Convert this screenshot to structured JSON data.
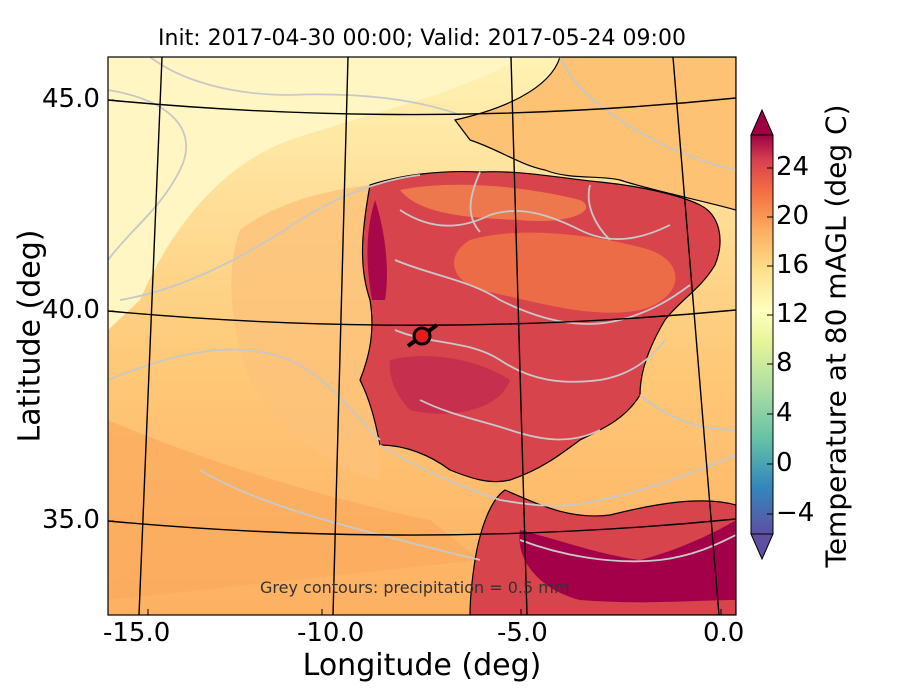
{
  "title": "Init: 2017-04-30 00:00; Valid: 2017-05-24 09:00",
  "xlabel": "Longitude (deg)",
  "ylabel": "Latitude (deg)",
  "colorbar": {
    "label": "Temperature at 80 mAGL (deg C)",
    "ticks": [
      "−4",
      "0",
      "4",
      "8",
      "12",
      "16",
      "20",
      "24"
    ],
    "range": [
      -6,
      27
    ],
    "colormap": "Spectral_r"
  },
  "x_ticks": [
    "-15.0",
    "-10.0",
    "-5.0",
    "0.0"
  ],
  "y_ticks": [
    "45.0",
    "40.0",
    "35.0"
  ],
  "note": "Grey contours: precipitation = 0.5 mm",
  "marker": {
    "name": "site",
    "lon": -7.6,
    "lat": 39.3,
    "color": "#e41a1c"
  },
  "colors": {
    "ocean_north": "#fff5be",
    "ocean_mid": "#ffd586",
    "ocean_south": "#fdb363",
    "land_hot": "#d83d4a",
    "land_hottest": "#a4004a",
    "grid": "#000000",
    "precip_contour": "#c8c8c8"
  }
}
